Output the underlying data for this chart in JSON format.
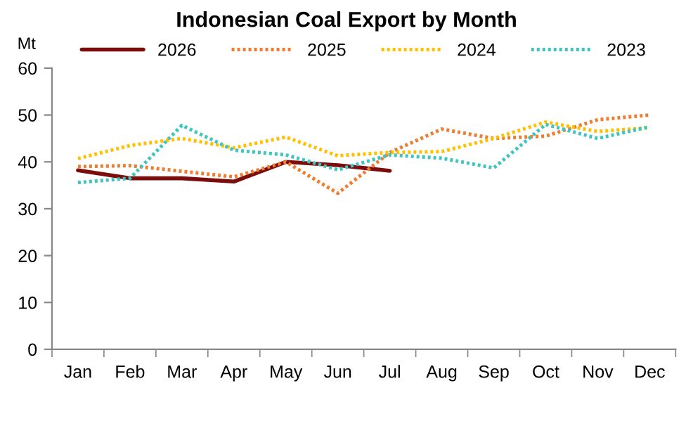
{
  "chart_data": {
    "type": "line",
    "title": "Indonesian Coal Export by Month",
    "ylabel": "Mt",
    "categories": [
      "Jan",
      "Feb",
      "Mar",
      "Apr",
      "May",
      "Jun",
      "Jul",
      "Aug",
      "Sep",
      "Oct",
      "Nov",
      "Dec"
    ],
    "series": [
      {
        "name": "2026",
        "color": "#7b0d0d",
        "line_style": "solid",
        "values": [
          38.2,
          36.5,
          36.5,
          35.8,
          40,
          39.3,
          38.1,
          null,
          null,
          null,
          null,
          null
        ]
      },
      {
        "name": "2025",
        "color": "#ed7d31",
        "line_style": "dotted",
        "values": [
          39,
          39.2,
          38,
          36.8,
          40,
          33.3,
          42,
          47,
          45,
          45.5,
          49,
          50
        ]
      },
      {
        "name": "2024",
        "color": "#ffc000",
        "line_style": "dotted",
        "values": [
          40.7,
          43.5,
          45,
          43,
          45.3,
          41.3,
          42,
          42.2,
          45,
          48.5,
          46.5,
          47.3
        ]
      },
      {
        "name": "2023",
        "color": "#3fc5c0",
        "line_style": "dotted",
        "values": [
          35.6,
          36.5,
          47.8,
          42.5,
          41.5,
          38.3,
          41.5,
          40.8,
          38.7,
          48,
          45,
          47.5
        ]
      }
    ],
    "ylim": [
      0,
      60
    ],
    "yticks": [
      0,
      10,
      20,
      30,
      40,
      50,
      60
    ],
    "grid": false,
    "legend": "top"
  }
}
